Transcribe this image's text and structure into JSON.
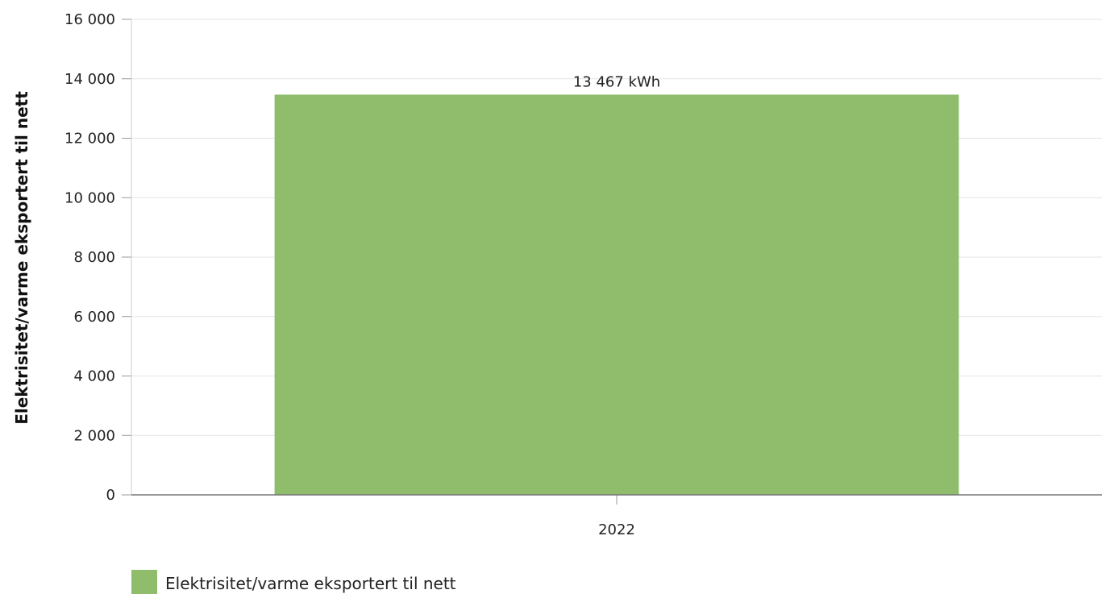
{
  "chart_data": {
    "type": "bar",
    "categories": [
      "2022"
    ],
    "series": [
      {
        "name": "Elektrisitet/varme eksportert til nett",
        "values": [
          13467
        ],
        "data_labels": [
          "13 467 kWh"
        ],
        "color": "#8fbd6c"
      }
    ],
    "ylabel": "Elektrisitet/varme eksportert til nett",
    "ylim": [
      0,
      16000
    ],
    "yticks": [
      0,
      2000,
      4000,
      6000,
      8000,
      10000,
      12000,
      14000,
      16000
    ],
    "ytick_labels": [
      "0",
      "2 000",
      "4 000",
      "6 000",
      "8 000",
      "10 000",
      "12 000",
      "14 000",
      "16 000"
    ],
    "grid": true,
    "legend_position": "bottom-left"
  }
}
